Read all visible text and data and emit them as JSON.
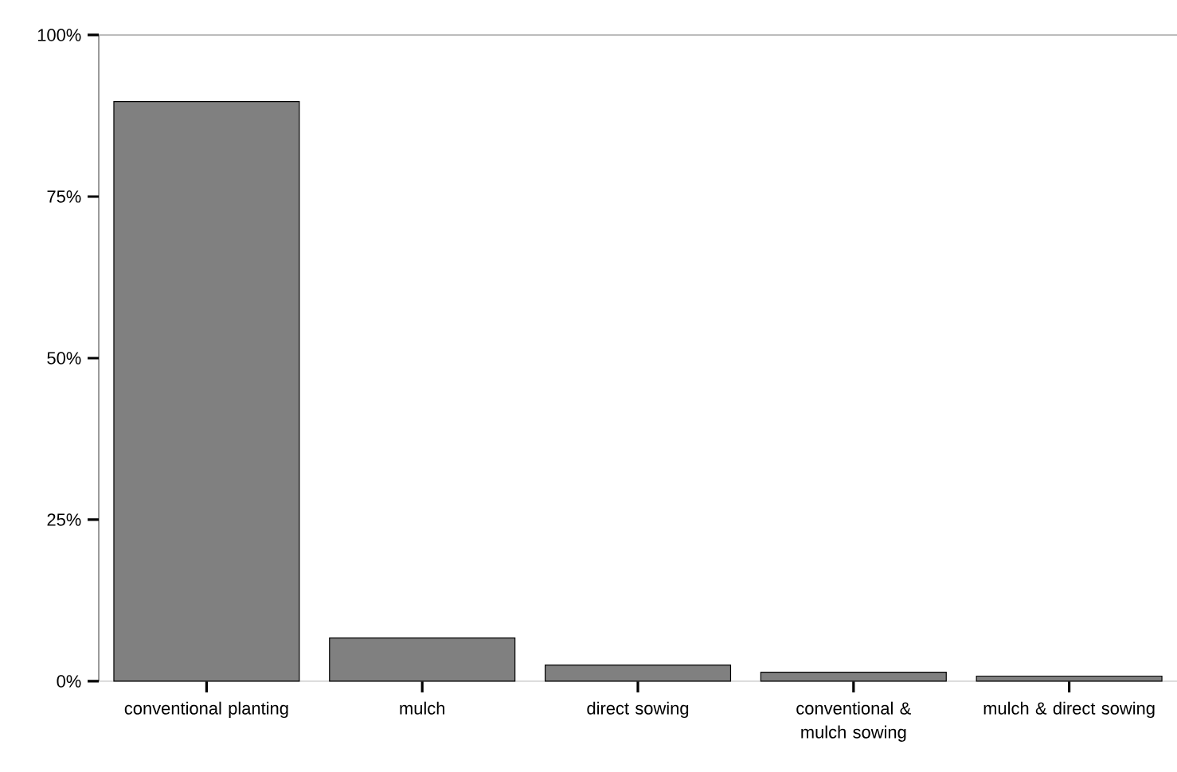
{
  "chart_data": {
    "type": "bar",
    "categories": [
      "conventional planting",
      "mulch",
      "direct sowing",
      "conventional & mulch sowing",
      "mulch & direct sowing"
    ],
    "values": [
      89.7,
      6.7,
      2.5,
      1.4,
      0.8
    ],
    "color": "#808080",
    "ylim": [
      0,
      100
    ],
    "yticks": [
      {
        "value": 0,
        "label": "0%"
      },
      {
        "value": 25,
        "label": "25%"
      },
      {
        "value": 50,
        "label": "50%"
      },
      {
        "value": 75,
        "label": "75%"
      },
      {
        "value": 100,
        "label": "100%"
      }
    ]
  }
}
